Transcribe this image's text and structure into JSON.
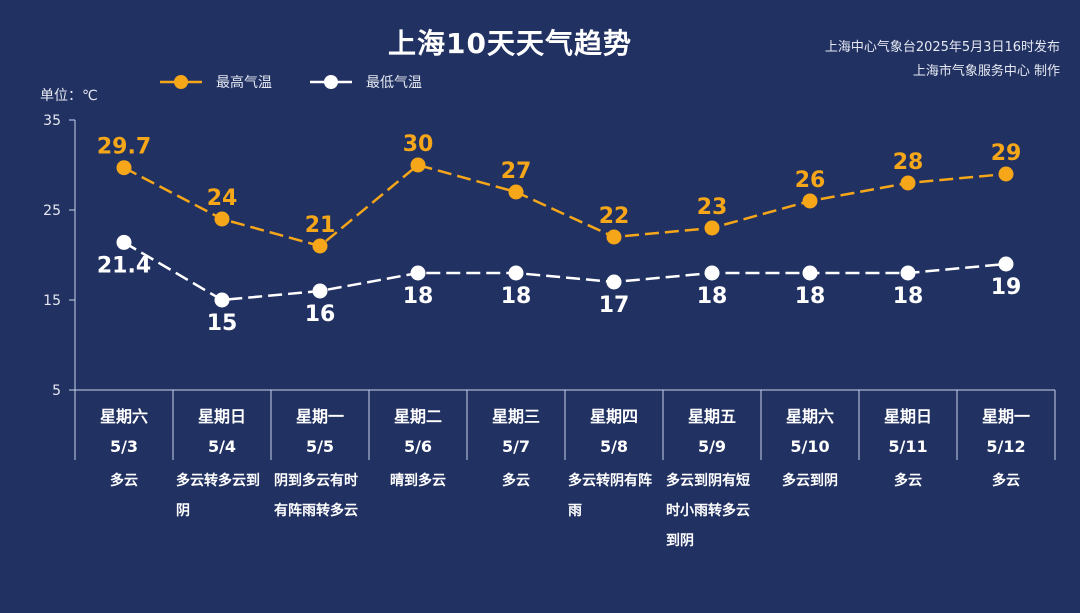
{
  "title": "上海10天天气趋势",
  "source_line1": "上海中心气象台2025年5月3日16时发布",
  "source_line2": "上海市气象服务中心 制作",
  "unit_label": "单位：℃",
  "colors": {
    "background": "#213162",
    "high": "#f5a619",
    "low": "#ffffff",
    "axis": "#c9d2e8"
  },
  "chart_data": {
    "type": "line",
    "ylim": [
      5,
      35
    ],
    "yticks": [
      5,
      15,
      25,
      35
    ],
    "legend_position": "top-left",
    "grid": false,
    "categories": [
      "5/3",
      "5/4",
      "5/5",
      "5/6",
      "5/7",
      "5/8",
      "5/9",
      "5/10",
      "5/11",
      "5/12"
    ],
    "weekdays": [
      "星期六",
      "星期日",
      "星期一",
      "星期二",
      "星期三",
      "星期四",
      "星期五",
      "星期六",
      "星期日",
      "星期一"
    ],
    "weather": [
      "多云",
      "多云转多云到阴",
      "阴到多云有时有阵雨转多云",
      "晴到多云",
      "多云",
      "多云转阴有阵雨",
      "多云到阴有短时小雨转多云到阴",
      "多云到阴",
      "多云",
      "多云"
    ],
    "series": [
      {
        "name": "最高气温",
        "values": [
          29.7,
          24,
          21,
          30,
          27,
          22,
          23,
          26,
          28,
          29
        ]
      },
      {
        "name": "最低气温",
        "values": [
          21.4,
          15,
          16,
          18,
          18,
          17,
          18,
          18,
          18,
          19
        ]
      }
    ]
  }
}
